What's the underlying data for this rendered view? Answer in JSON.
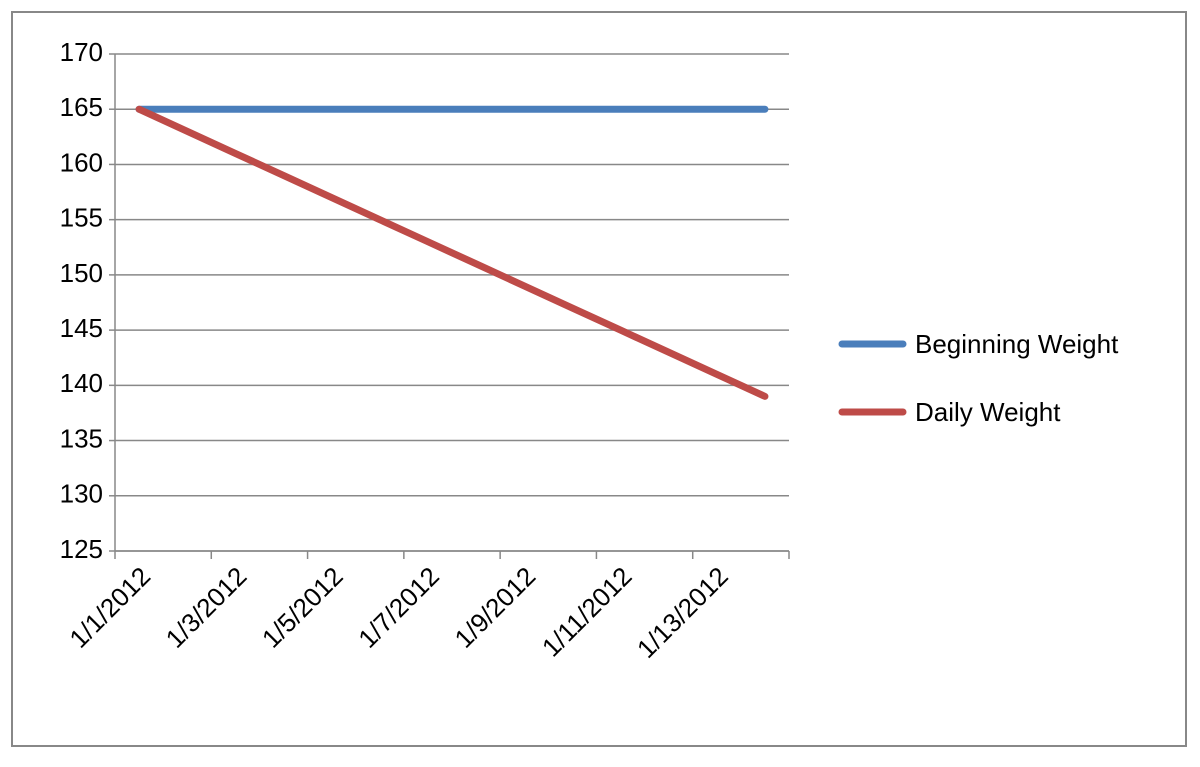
{
  "chart_data": {
    "type": "line",
    "categories": [
      "1/1/2012",
      null,
      "1/3/2012",
      null,
      "1/5/2012",
      null,
      "1/7/2012",
      null,
      "1/9/2012",
      null,
      "1/11/2012",
      null,
      "1/13/2012",
      null
    ],
    "series": [
      {
        "name": "Beginning Weight",
        "color": "#4a7ebb",
        "values": [
          165,
          165,
          165,
          165,
          165,
          165,
          165,
          165,
          165,
          165,
          165,
          165,
          165,
          165
        ]
      },
      {
        "name": "Daily Weight",
        "color": "#be4b48",
        "values": [
          165,
          163,
          161,
          159,
          157,
          155,
          153,
          151,
          149,
          147,
          145,
          143,
          141,
          139
        ]
      }
    ],
    "ylim": [
      125,
      170
    ],
    "yticks": [
      125,
      130,
      135,
      140,
      145,
      150,
      155,
      160,
      165,
      170
    ],
    "grid": true,
    "legend": "right"
  }
}
